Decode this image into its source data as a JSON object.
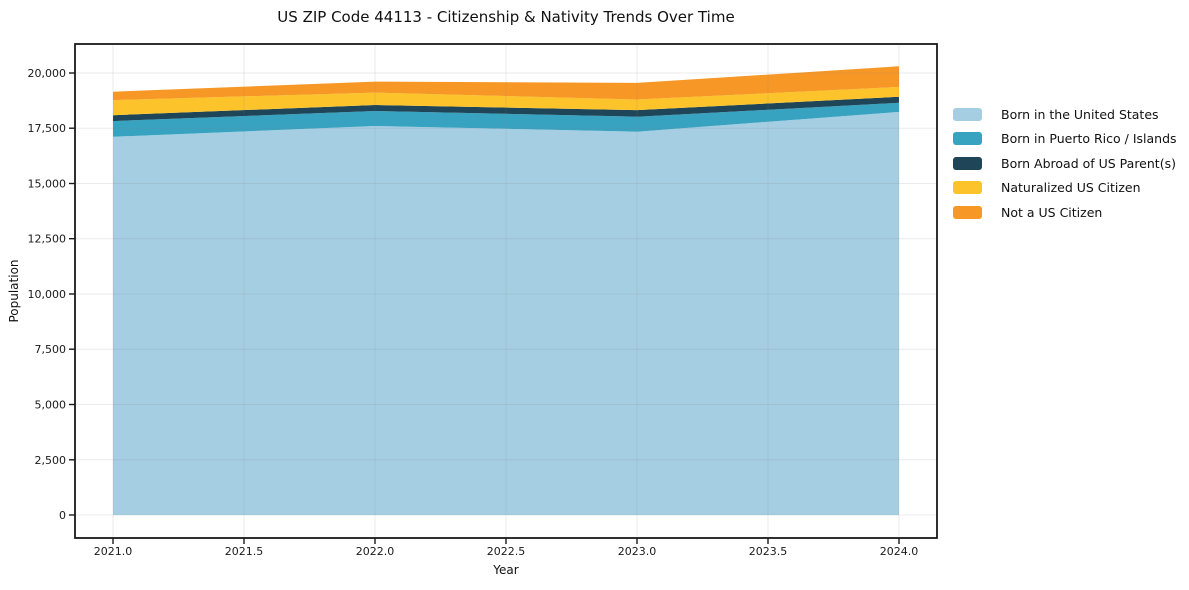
{
  "chart_data": {
    "type": "area",
    "stacked": true,
    "title": "US ZIP Code 44113 - Citizenship & Nativity Trends Over Time",
    "xlabel": "Year",
    "ylabel": "Population",
    "x": [
      2021,
      2022,
      2023,
      2024
    ],
    "series": [
      {
        "name": "Born in the United States",
        "color": "#a5cee3",
        "values": [
          17110,
          17600,
          17340,
          18240
        ]
      },
      {
        "name": "Born in Puerto Rico / Islands",
        "color": "#38a3c1",
        "values": [
          710,
          680,
          680,
          410
        ]
      },
      {
        "name": "Born Abroad of US Parent(s)",
        "color": "#1f4658",
        "values": [
          270,
          270,
          300,
          270
        ]
      },
      {
        "name": "Naturalized US Citizen",
        "color": "#fcc42a",
        "values": [
          680,
          560,
          480,
          450
        ]
      },
      {
        "name": "Not a US Citizen",
        "color": "#f79725",
        "values": [
          380,
          500,
          750,
          930
        ]
      }
    ],
    "stack_totals": [
      19150,
      19610,
      19550,
      20300
    ],
    "xticks": {
      "values": [
        2021.0,
        2021.5,
        2022.0,
        2022.5,
        2023.0,
        2023.5,
        2024.0
      ],
      "labels": [
        "2021.0",
        "2021.5",
        "2022.0",
        "2022.5",
        "2023.0",
        "2023.5",
        "2024.0"
      ]
    },
    "yticks": {
      "values": [
        0,
        2500,
        5000,
        7500,
        10000,
        12500,
        15000,
        17500,
        20000
      ],
      "labels": [
        "0",
        "2,500",
        "5,000",
        "7,500",
        "10,000",
        "12,500",
        "15,000",
        "17,500",
        "20,000"
      ]
    },
    "xlim": [
      2020.855,
      2024.145
    ],
    "ylim": [
      -1040,
      21310
    ],
    "grid": true,
    "legend_position": "right-outside",
    "colors": {
      "frame": "#1a1a1a",
      "tick_text": "#1a1a1a",
      "gridline": "rgba(130,130,130,0.16)",
      "background": "#ffffff"
    }
  }
}
